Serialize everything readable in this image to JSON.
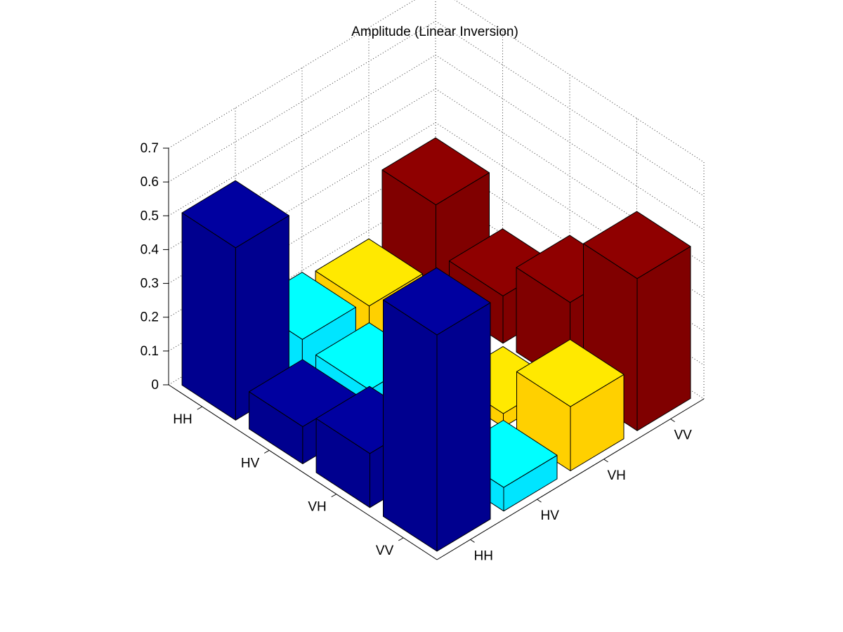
{
  "chart_data": {
    "type": "bar",
    "subtype": "bar3d",
    "title": "Amplitude (Linear Inversion)",
    "xlabel": "",
    "ylabel": "",
    "zlabel": "",
    "row_labels": [
      "HH",
      "HV",
      "VH",
      "VV"
    ],
    "column_labels": [
      "HH",
      "HV",
      "VH",
      "VV"
    ],
    "zlim": [
      0,
      0.7
    ],
    "zticks": [
      "0",
      "0.1",
      "0.2",
      "0.3",
      "0.4",
      "0.5",
      "0.6",
      "0.7"
    ],
    "grid": true,
    "legend": "none",
    "values": [
      [
        0.51,
        0.12,
        0.1,
        0.28
      ],
      [
        0.11,
        0.1,
        0.05,
        0.14
      ],
      [
        0.16,
        0.05,
        0.04,
        0.25
      ],
      [
        0.64,
        0.07,
        0.19,
        0.45
      ]
    ],
    "column_colors": [
      "#00008F",
      "#00E5FF",
      "#FFD000",
      "#800000"
    ]
  }
}
